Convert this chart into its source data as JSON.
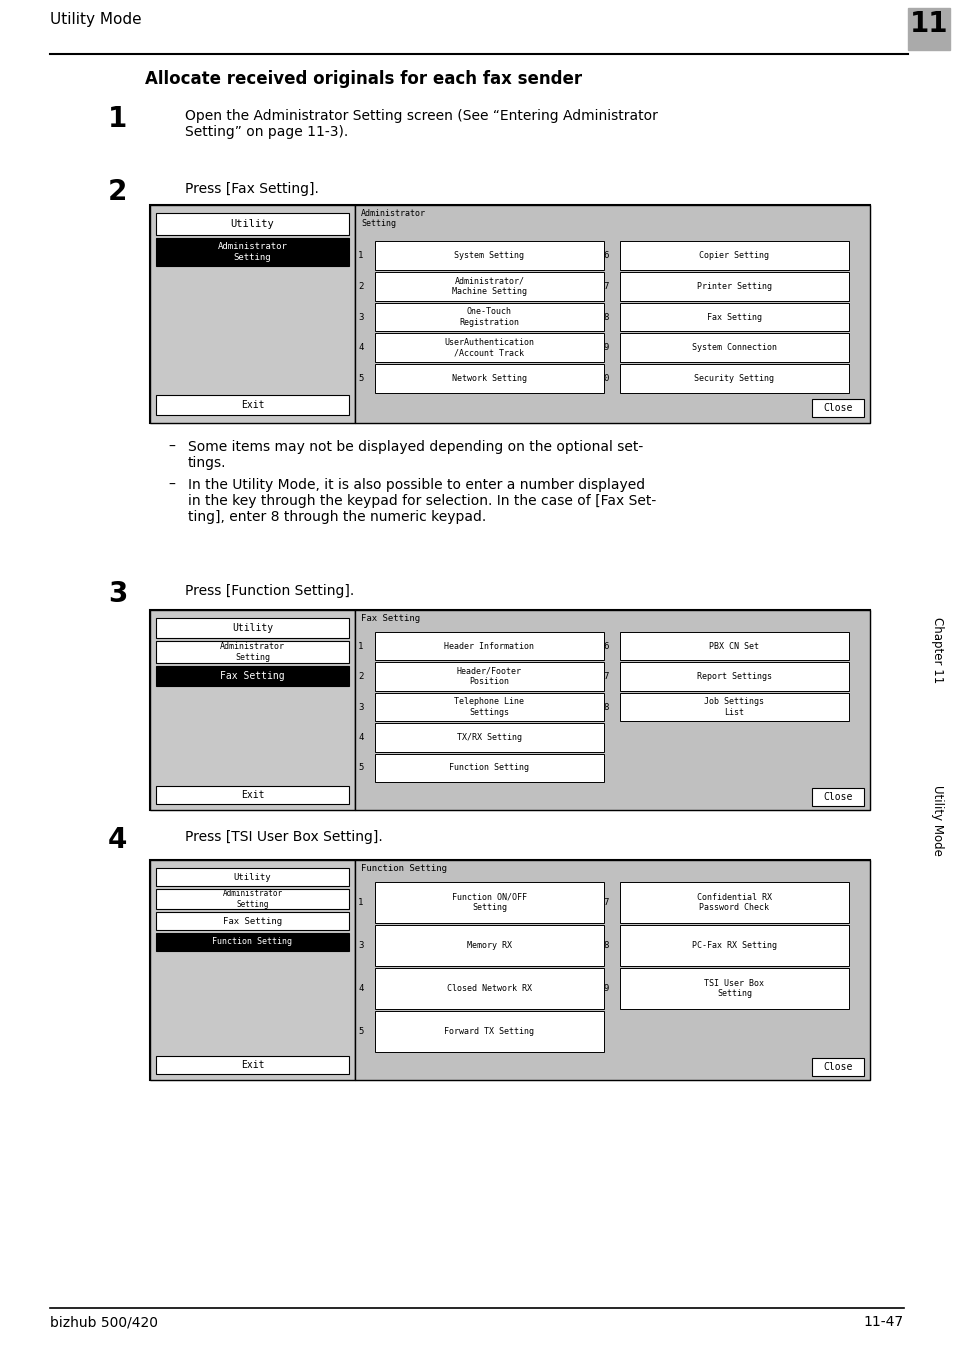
{
  "page_bg": "#ffffff",
  "header_text": "Utility Mode",
  "header_chapter_num": "11",
  "header_chapter_bg": "#aaaaaa",
  "footer_left": "bizhub 500/420",
  "footer_right": "11-47",
  "title": "Allocate received originals for each fax sender",
  "step1_num": "1",
  "step1_text": "Open the Administrator Setting screen (See “Entering Administrator\nSetting” on page 11-3).",
  "step2_num": "2",
  "step2_text": "Press [Fax Setting].",
  "step3_num": "3",
  "step3_text": "Press [Function Setting].",
  "step4_num": "4",
  "step4_text": "Press [TSI User Box Setting].",
  "bullet1": "Some items may not be displayed depending on the optional set-\ntings.",
  "bullet2": "In the Utility Mode, it is also possible to enter a number displayed\nin the key through the keypad for selection. In the case of [Fax Set-\nting], enter 8 through the numeric keypad.",
  "side_label": "Utility Mode",
  "side_chapter": "Chapter 11"
}
